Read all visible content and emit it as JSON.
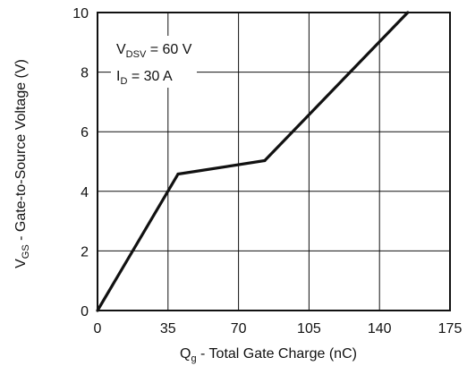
{
  "chart_data": {
    "type": "line",
    "xlabel": {
      "main": "Q",
      "sub": "g",
      "rest": " - Total Gate Charge (nC)"
    },
    "ylabel": {
      "main": "V",
      "sub": "GS",
      "rest": " - Gate-to-Source Voltage (V)"
    },
    "xlim": [
      0,
      175
    ],
    "ylim": [
      0,
      10
    ],
    "xticks": [
      0,
      35,
      70,
      105,
      140,
      175
    ],
    "yticks": [
      0,
      2,
      4,
      6,
      8,
      10
    ],
    "grid": true,
    "series": [
      {
        "x": [
          0,
          40,
          83,
          154
        ],
        "y": [
          0,
          4.58,
          5.03,
          10
        ],
        "color": "#111111"
      }
    ],
    "annotations": [
      {
        "main": "V",
        "sub": "DSV",
        "rest": " = 60 V"
      },
      {
        "main": "I",
        "sub": "D",
        "rest": " = 30 A"
      }
    ]
  }
}
